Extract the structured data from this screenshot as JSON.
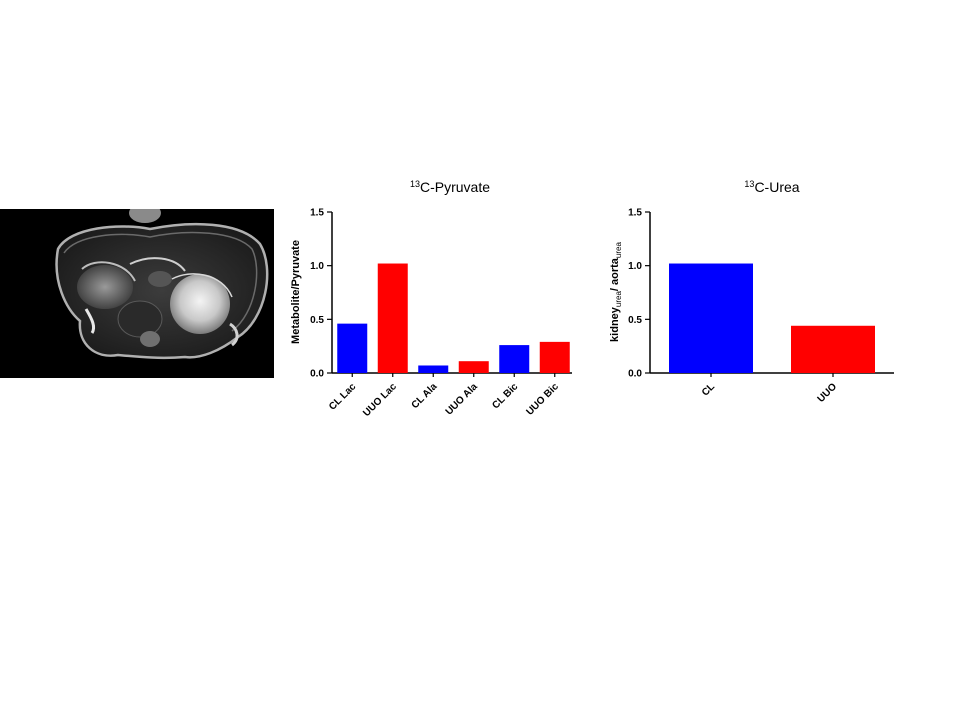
{
  "chart_data": [
    {
      "type": "bar",
      "title_super": "13",
      "title_main": "C-Pyruvate",
      "ylabel": "Metabolite/Pyruvate",
      "ylim": [
        0,
        1.5
      ],
      "yticks": [
        "0.0",
        "0.5",
        "1.0",
        "1.5"
      ],
      "categories": [
        "CL Lac",
        "UUO Lac",
        "CL Ala",
        "UUO Ala",
        "CL Bic",
        "UUO Bic"
      ],
      "values": [
        0.46,
        1.02,
        0.07,
        0.11,
        0.26,
        0.29
      ],
      "colors": [
        "#0000ff",
        "#ff0000",
        "#0000ff",
        "#ff0000",
        "#0000ff",
        "#ff0000"
      ]
    },
    {
      "type": "bar",
      "title_super": "13",
      "title_main": "C-Urea",
      "ylabel_a": "kidney",
      "ylabel_a_sub": "urea",
      "ylabel_sep": "/ ",
      "ylabel_b": "aorta",
      "ylabel_b_sub": "urea",
      "ylim": [
        0,
        1.5
      ],
      "yticks": [
        "0.0",
        "0.5",
        "1.0",
        "1.5"
      ],
      "categories": [
        "CL",
        "UUO"
      ],
      "values": [
        1.02,
        0.44
      ],
      "colors": [
        "#0000ff",
        "#ff0000"
      ]
    }
  ]
}
